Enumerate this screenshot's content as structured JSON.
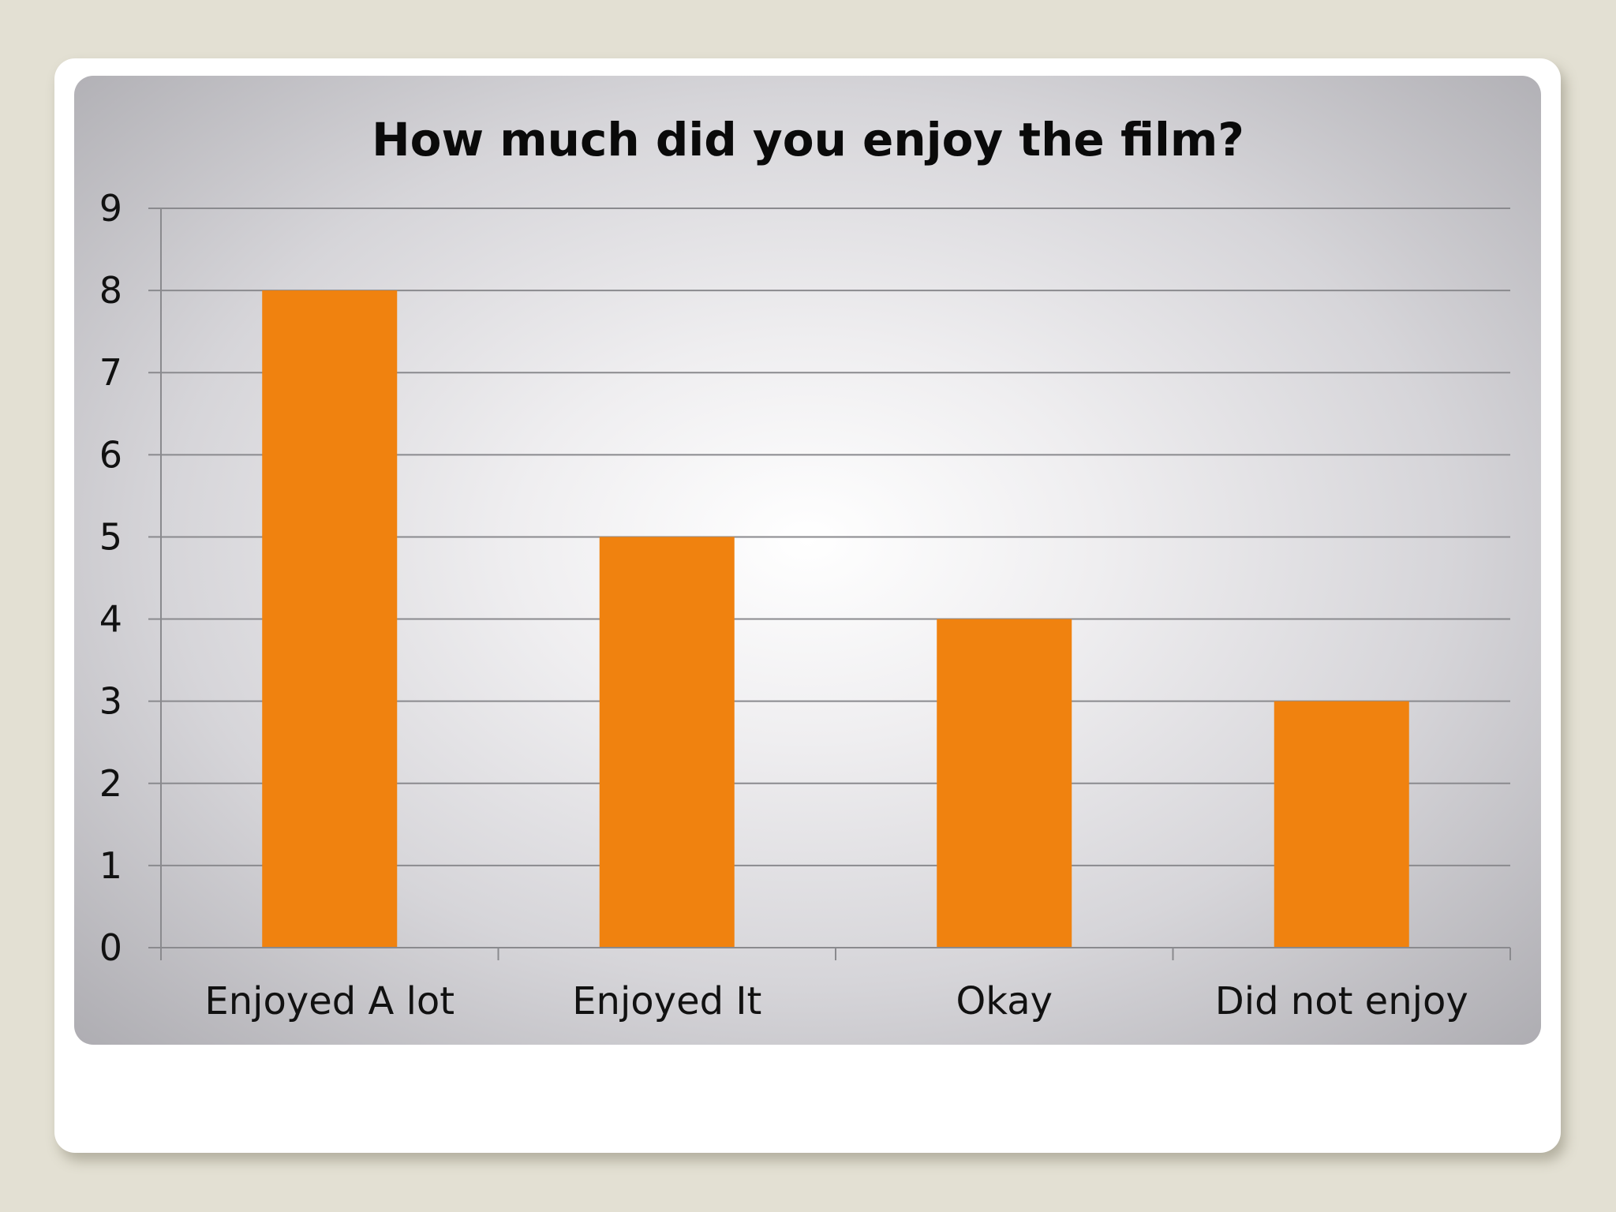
{
  "chart_data": {
    "type": "bar",
    "title": "How much did you enjoy the film?",
    "categories": [
      "Enjoyed A lot",
      "Enjoyed It",
      "Okay",
      "Did not enjoy"
    ],
    "values": [
      8,
      5,
      4,
      3
    ],
    "ylim": [
      0,
      9
    ],
    "yticks": [
      "0",
      "1",
      "2",
      "3",
      "4",
      "5",
      "6",
      "7",
      "8",
      "9"
    ],
    "xlabel": "",
    "ylabel": "",
    "grid": true,
    "legend": "none",
    "bar_color": "#f0820f",
    "gridline_color": "#8a8a8e"
  }
}
